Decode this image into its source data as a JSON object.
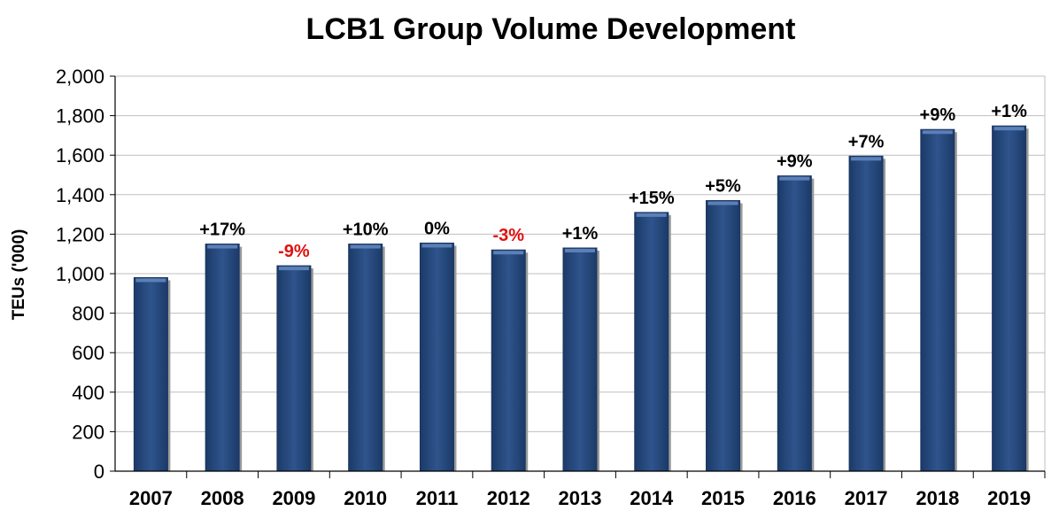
{
  "chart_data": {
    "type": "bar",
    "title": "LCB1 Group Volume Development",
    "ylabel": "TEUs ('000)",
    "xlabel": "",
    "ylim": [
      0,
      2000
    ],
    "yticks": [
      0,
      200,
      400,
      600,
      800,
      1000,
      1200,
      1400,
      1600,
      1800,
      2000
    ],
    "ytick_labels": [
      "0",
      "200",
      "400",
      "600",
      "800",
      "1,000",
      "1,200",
      "1,400",
      "1,600",
      "1,800",
      "2,000"
    ],
    "grid": true,
    "categories": [
      "2007",
      "2008",
      "2009",
      "2010",
      "2011",
      "2012",
      "2013",
      "2014",
      "2015",
      "2016",
      "2017",
      "2018",
      "2019"
    ],
    "values": [
      980,
      1150,
      1040,
      1150,
      1155,
      1120,
      1130,
      1310,
      1370,
      1495,
      1595,
      1730,
      1748
    ],
    "data_labels": [
      "",
      "+17%",
      "-9%",
      "+10%",
      "0%",
      "-3%",
      "+1%",
      "+15%",
      "+5%",
      "+9%",
      "+7%",
      "+9%",
      "+1%"
    ],
    "colors": {
      "bar": "#2a4d82",
      "positive_label": "#000000",
      "negative_label": "#e01010",
      "grid": "#bfbfbf"
    }
  }
}
